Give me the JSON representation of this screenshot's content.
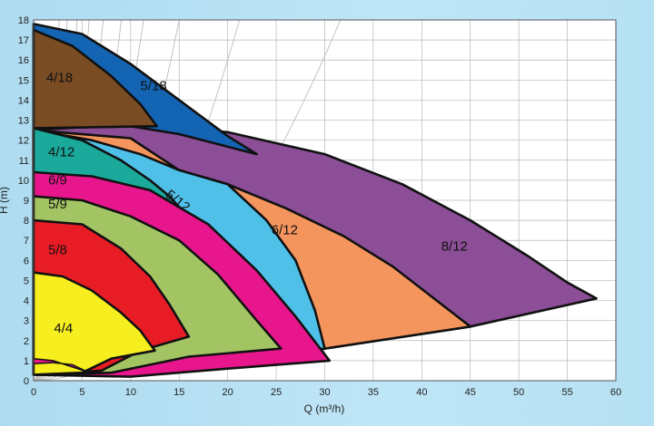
{
  "chart_data": {
    "type": "area",
    "xlabel": "Q (m³/h)",
    "ylabel": "H (m)",
    "xlim": [
      0,
      60
    ],
    "ylim": [
      0,
      18
    ],
    "xticks": [
      0,
      5,
      10,
      15,
      20,
      25,
      30,
      35,
      40,
      45,
      50,
      55,
      60
    ],
    "yticks": [
      0,
      1,
      2,
      3,
      4,
      5,
      6,
      7,
      8,
      9,
      10,
      11,
      12,
      13,
      14,
      15,
      16,
      17,
      18
    ],
    "grid": true,
    "regions": [
      {
        "label": "8/12",
        "color": "#8b4e97",
        "label_at": [
          42,
          6.5
        ],
        "boundary": [
          [
            0,
            12.5
          ],
          [
            10,
            12.8
          ],
          [
            20,
            12.4
          ],
          [
            30,
            11.3
          ],
          [
            38,
            9.8
          ],
          [
            45,
            8.0
          ],
          [
            51,
            6.2
          ],
          [
            55,
            4.9
          ],
          [
            58,
            4.1
          ],
          [
            45,
            2.7
          ],
          [
            30,
            1.6
          ],
          [
            12,
            0.4
          ],
          [
            0,
            0.3
          ]
        ]
      },
      {
        "label": "6/12",
        "color": "#f5955e",
        "label_at": [
          24.5,
          7.3
        ],
        "boundary": [
          [
            0,
            12.5
          ],
          [
            10,
            12.1
          ],
          [
            15,
            10.5
          ],
          [
            20,
            9.8
          ],
          [
            26,
            8.6
          ],
          [
            32,
            7.2
          ],
          [
            37,
            5.7
          ],
          [
            41,
            4.2
          ],
          [
            45,
            2.7
          ],
          [
            30,
            1.6
          ],
          [
            12,
            0.4
          ],
          [
            0,
            0.3
          ]
        ]
      },
      {
        "label": "5/12",
        "color": "#4fc0e8",
        "label_at": [
          13.5,
          9.2
        ],
        "boundary": [
          [
            0,
            12.5
          ],
          [
            6,
            12.0
          ],
          [
            11,
            11.3
          ],
          [
            15,
            10.5
          ],
          [
            20,
            9.8
          ],
          [
            24,
            8.0
          ],
          [
            27,
            6.0
          ],
          [
            29,
            3.5
          ],
          [
            30,
            1.6
          ],
          [
            12,
            0.4
          ],
          [
            0,
            0.3
          ]
        ]
      },
      {
        "label": "4/12",
        "color": "#1aa99a",
        "label_at": [
          1.5,
          11.2
        ],
        "boundary": [
          [
            0,
            12.6
          ],
          [
            5,
            12.0
          ],
          [
            9,
            11.0
          ],
          [
            12,
            10.0
          ],
          [
            14,
            9.2
          ],
          [
            20,
            6.0
          ],
          [
            24,
            3.5
          ],
          [
            26,
            1.6
          ],
          [
            12,
            0.4
          ],
          [
            0,
            0.3
          ]
        ]
      },
      {
        "label": "6/9",
        "color": "#e8168c",
        "label_at": [
          1.5,
          9.8
        ],
        "boundary": [
          [
            0,
            10.4
          ],
          [
            6,
            10.2
          ],
          [
            12,
            9.5
          ],
          [
            18,
            7.8
          ],
          [
            23,
            5.5
          ],
          [
            27,
            3.2
          ],
          [
            30.5,
            1.0
          ],
          [
            20,
            0.6
          ],
          [
            10,
            0.2
          ],
          [
            0,
            0.3
          ]
        ]
      },
      {
        "label": "5/9",
        "color": "#a3c463",
        "label_at": [
          1.5,
          8.6
        ],
        "boundary": [
          [
            0,
            9.2
          ],
          [
            5,
            9.0
          ],
          [
            10,
            8.2
          ],
          [
            15,
            7.0
          ],
          [
            19,
            5.3
          ],
          [
            23,
            3.0
          ],
          [
            25.5,
            1.6
          ],
          [
            16,
            1.2
          ],
          [
            8,
            0.4
          ],
          [
            0,
            0.3
          ]
        ]
      },
      {
        "label": "5/8",
        "color": "#e81c25",
        "label_at": [
          1.5,
          6.3
        ],
        "boundary": [
          [
            0,
            8.0
          ],
          [
            5,
            7.8
          ],
          [
            9,
            6.6
          ],
          [
            12,
            5.2
          ],
          [
            14,
            3.8
          ],
          [
            16,
            2.2
          ],
          [
            11,
            1.5
          ],
          [
            7,
            0.5
          ],
          [
            0,
            0.3
          ]
        ]
      },
      {
        "label": "4/4",
        "color": "#f6ee1f",
        "label_at": [
          2.1,
          2.4
        ],
        "boundary": [
          [
            0,
            5.4
          ],
          [
            3,
            5.2
          ],
          [
            6,
            4.5
          ],
          [
            9,
            3.4
          ],
          [
            11,
            2.5
          ],
          [
            12.5,
            1.5
          ],
          [
            8,
            1.1
          ],
          [
            5,
            0.4
          ],
          [
            0,
            0.3
          ]
        ]
      },
      {
        "label": "5/18",
        "color": "#1464b4",
        "label_at": [
          11,
          14.5
        ],
        "boundary": [
          [
            0,
            17.8
          ],
          [
            5,
            17.3
          ],
          [
            10,
            15.8
          ],
          [
            15,
            14.0
          ],
          [
            20,
            12.2
          ],
          [
            23,
            11.3
          ],
          [
            15,
            12.3
          ],
          [
            10,
            12.7
          ],
          [
            0,
            12.6
          ]
        ]
      },
      {
        "label": "4/18",
        "color": "#7a4c24",
        "label_at": [
          1.3,
          14.9
        ],
        "boundary": [
          [
            0,
            17.5
          ],
          [
            4,
            16.7
          ],
          [
            8,
            15.2
          ],
          [
            11,
            13.8
          ],
          [
            12.7,
            12.7
          ],
          [
            0,
            12.6
          ]
        ]
      }
    ],
    "unlabeled_bands": [
      {
        "color": "#e8168c",
        "boundary": [
          [
            0,
            1.1
          ],
          [
            2,
            1.0
          ],
          [
            4.5,
            0.6
          ],
          [
            5.5,
            0.45
          ],
          [
            4,
            0.8
          ],
          [
            2,
            0.9
          ],
          [
            0,
            0.85
          ]
        ]
      }
    ],
    "system_curve_coefficients": [
      0.018,
      0.04,
      0.08,
      0.14,
      0.22,
      0.35,
      0.55,
      0.9,
      1.5,
      2.6
    ]
  }
}
